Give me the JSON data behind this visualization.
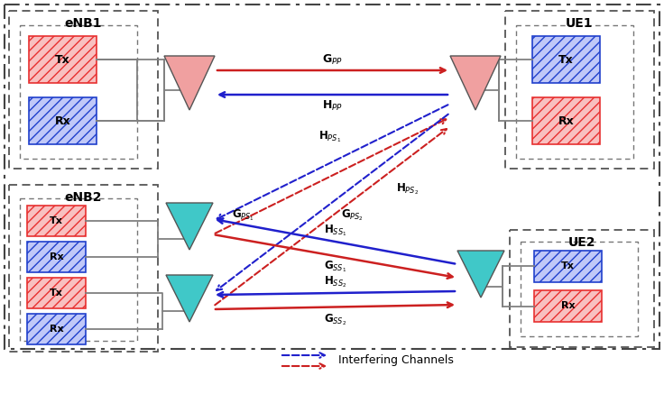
{
  "enb1_label": "eNB1",
  "enb2_label": "eNB2",
  "ue1_label": "UE1",
  "ue2_label": "UE2",
  "tx_red_color": "#e83030",
  "tx_red_face": "#f8c0c0",
  "rx_blue_color": "#2040cc",
  "rx_blue_face": "#c0c8f8",
  "arrow_red": "#cc2020",
  "arrow_blue": "#2020cc",
  "ant_pink_color": "#f0a0a0",
  "ant_teal_color": "#40c8c8",
  "legend_text": "Interfering Channels",
  "outer_box_color": "#555555",
  "inner_box_color": "#777777"
}
